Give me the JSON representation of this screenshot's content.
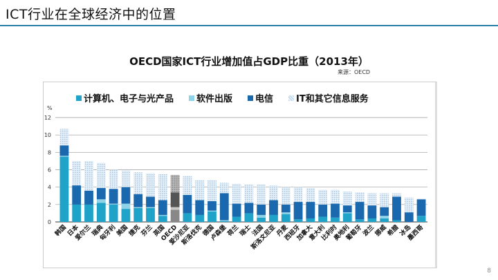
{
  "slide": {
    "title": "ICT行业在全球经济中的位置",
    "page_number": "8"
  },
  "chart_data": {
    "type": "bar",
    "stacked": true,
    "title": "OECD国家ICT行业增加值占GDP比重（2013年）",
    "source": "来源：OECD",
    "ylabel": "%",
    "ylim": [
      0,
      12
    ],
    "yticks": [
      0,
      2,
      4,
      6,
      8,
      10,
      12
    ],
    "grid": true,
    "legend_position": "top",
    "categories": [
      "韩国",
      "日本",
      "爱尔兰",
      "瑞典",
      "匈牙利",
      "美国",
      "捷克",
      "芬兰",
      "英国",
      "OECD",
      "爱沙尼亚",
      "斯洛伐克",
      "德国",
      "卢森堡",
      "荷兰",
      "瑞士",
      "法国",
      "斯洛文尼亚",
      "丹麦",
      "西班牙",
      "加拿大",
      "意大利",
      "比利时",
      "奥地利",
      "葡萄牙",
      "波兰",
      "挪威",
      "希腊",
      "冰岛",
      "墨西哥"
    ],
    "series": [
      {
        "name": "计算机、电子与光产品",
        "color": "#1fa3c8",
        "values": [
          7.5,
          2.0,
          2.0,
          2.2,
          2.0,
          1.5,
          1.6,
          1.6,
          0.7,
          1.4,
          1.0,
          0.8,
          1.2,
          0.1,
          0.6,
          1.0,
          0.5,
          0.8,
          0.9,
          0.3,
          0.4,
          0.6,
          0.5,
          1.0,
          0.3,
          0.4,
          0.4,
          0.2,
          0.0,
          0.7
        ]
      },
      {
        "name": "软件出版",
        "color": "#8fd3e8",
        "values": [
          0.1,
          0,
          0,
          0.4,
          0.1,
          0.6,
          0.1,
          0.1,
          0.1,
          0.3,
          0,
          0,
          0.1,
          0.1,
          0,
          0,
          0.3,
          0,
          0.2,
          0,
          0,
          0,
          0,
          0.1,
          0,
          0,
          0.3,
          0,
          0,
          0
        ]
      },
      {
        "name": "电信",
        "color": "#1a68ad",
        "values": [
          1.2,
          2.2,
          1.6,
          1.3,
          1.7,
          1.9,
          1.5,
          1.2,
          1.7,
          1.7,
          2.1,
          1.7,
          1.1,
          3.1,
          1.5,
          1.2,
          1.2,
          1.7,
          0.9,
          2.0,
          1.9,
          1.4,
          1.6,
          0.8,
          2.0,
          1.5,
          1.0,
          2.7,
          1.1,
          1.9
        ]
      },
      {
        "name": "IT和其它信息服务",
        "color": "#c5dcef",
        "values": [
          1.9,
          2.8,
          3.4,
          2.9,
          2.2,
          1.9,
          2.5,
          2.7,
          3.0,
          2.0,
          2.2,
          2.3,
          2.4,
          1.2,
          2.3,
          2.1,
          2.3,
          1.7,
          2.0,
          1.7,
          1.6,
          1.7,
          1.6,
          1.6,
          1.1,
          1.4,
          1.6,
          0.4,
          1.7,
          0.1
        ]
      }
    ],
    "highlight_category": "OECD",
    "highlight_colors": [
      "#888888",
      "#c8c8c8",
      "#555555",
      "#9a9a9a"
    ]
  }
}
